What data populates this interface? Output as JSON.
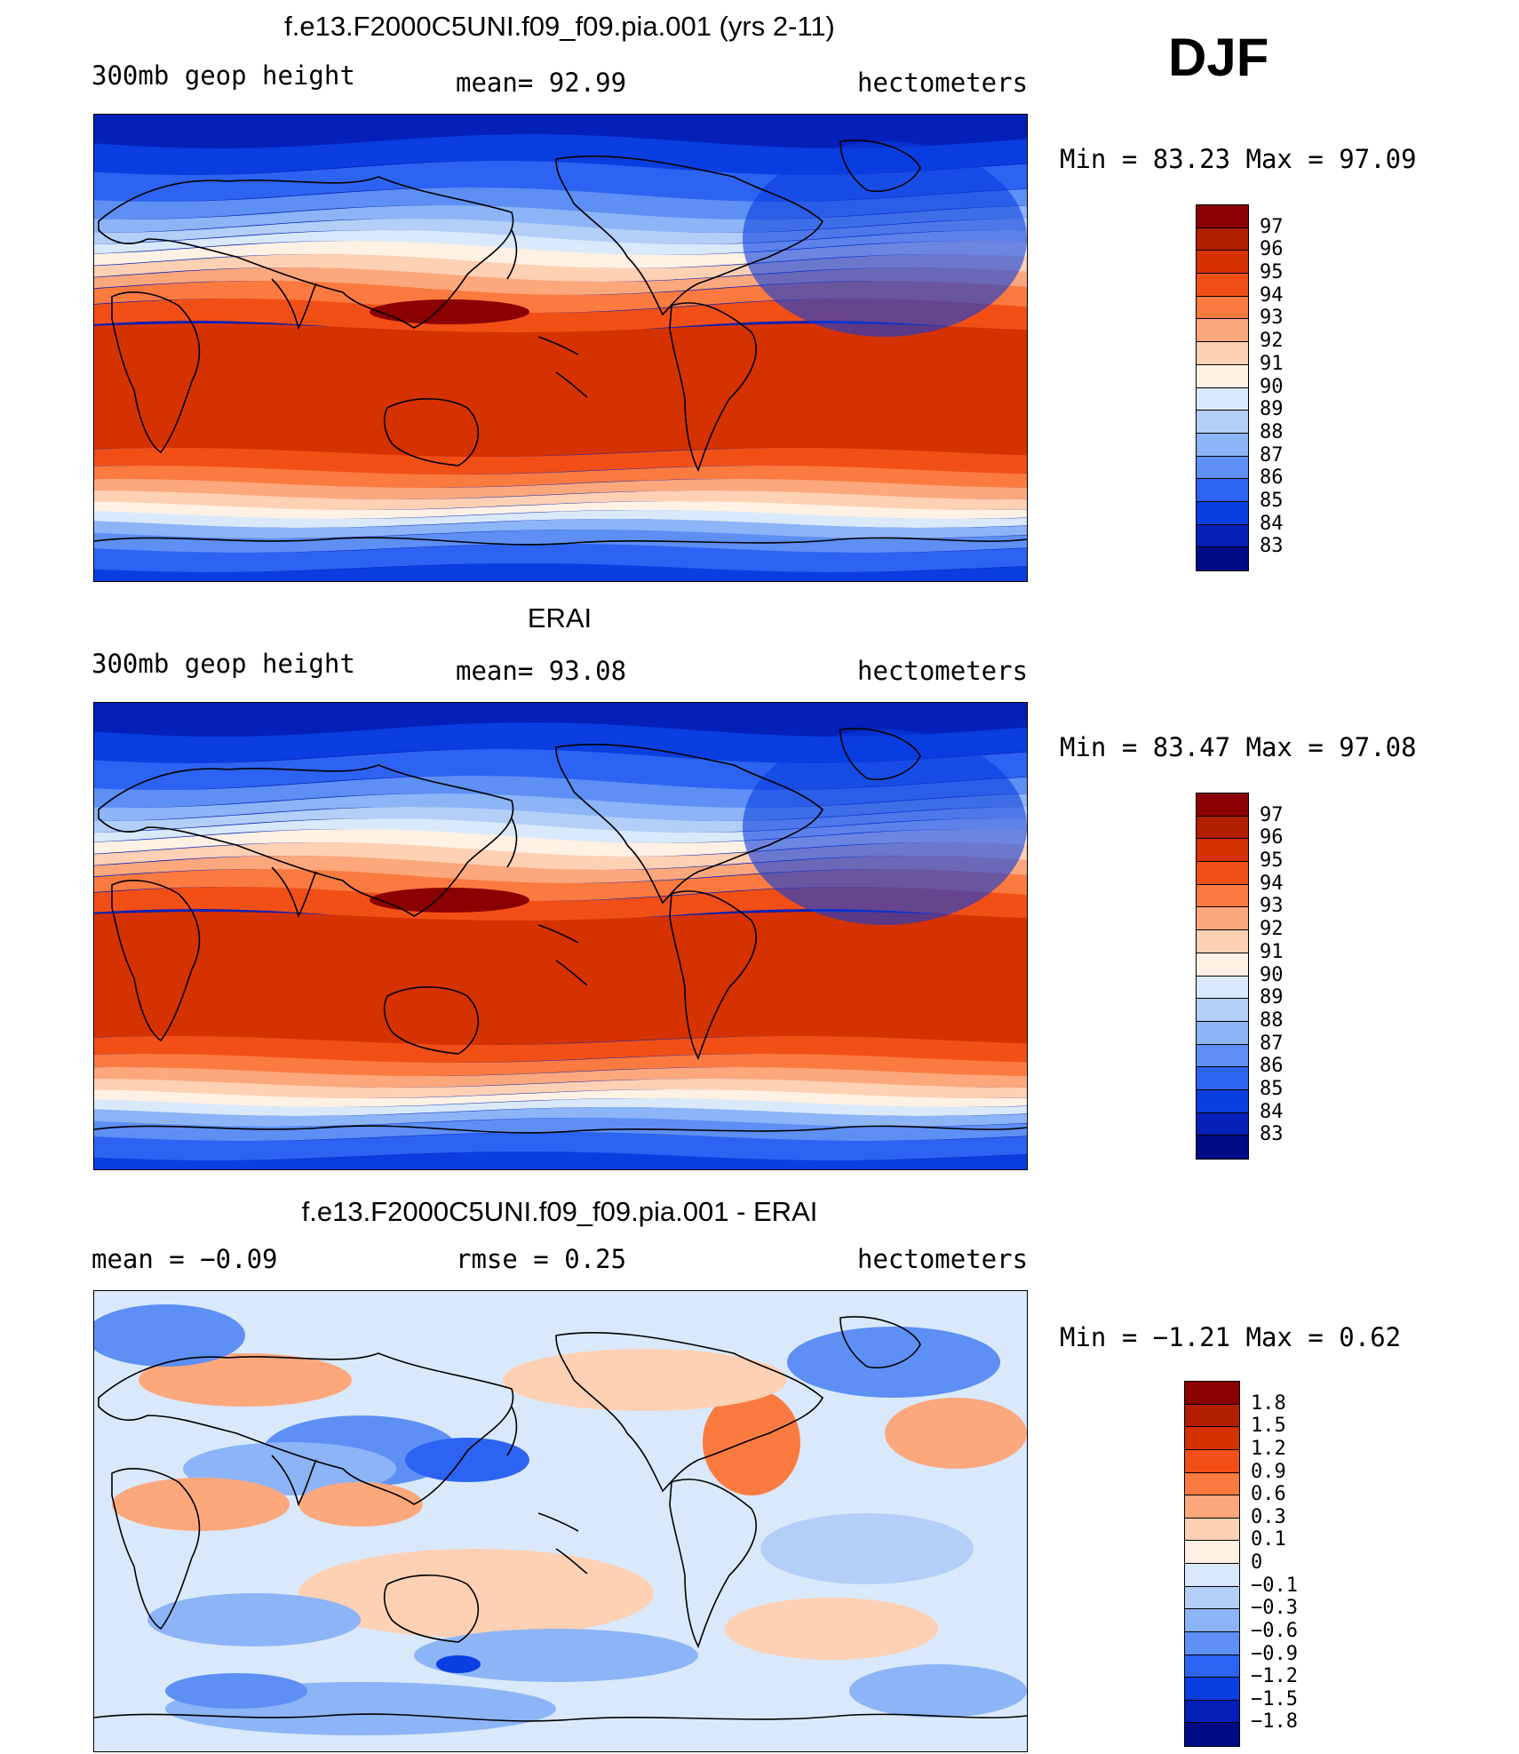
{
  "season": "DJF",
  "panels": [
    {
      "title": "f.e13.F2000C5UNI.f09_f09.pia.001 (yrs 2-11)",
      "left_label": "300mb  geop  height",
      "center_label": "mean=   92.99",
      "units": "hectometers",
      "stats": "Min  =    83.23  Max  =    97.09",
      "colorbar": {
        "labels": [
          "97",
          "96",
          "95",
          "94",
          "93",
          "92",
          "91",
          "90",
          "89",
          "88",
          "87",
          "86",
          "85",
          "84",
          "83"
        ],
        "colors": [
          "#8b0000",
          "#b11e00",
          "#d63200",
          "#f24f16",
          "#fb7a3f",
          "#fda77d",
          "#fed0b4",
          "#fff1e3",
          "#d9e9fb",
          "#b3cff8",
          "#8db4f6",
          "#5d8ff5",
          "#2d63f2",
          "#0a3ee0",
          "#0420b8",
          "#000a85"
        ]
      },
      "contour_field": {
        "min": 83.23,
        "max": 97.09,
        "mean": 92.99
      }
    },
    {
      "title": "ERAI",
      "left_label": "300mb  geop  height",
      "center_label": "mean=   93.08",
      "units": "hectometers",
      "stats": "Min  =    83.47  Max  =    97.08",
      "colorbar": {
        "labels": [
          "97",
          "96",
          "95",
          "94",
          "93",
          "92",
          "91",
          "90",
          "89",
          "88",
          "87",
          "86",
          "85",
          "84",
          "83"
        ],
        "colors": [
          "#8b0000",
          "#b11e00",
          "#d63200",
          "#f24f16",
          "#fb7a3f",
          "#fda77d",
          "#fed0b4",
          "#fff1e3",
          "#d9e9fb",
          "#b3cff8",
          "#8db4f6",
          "#5d8ff5",
          "#2d63f2",
          "#0a3ee0",
          "#0420b8",
          "#000a85"
        ]
      },
      "contour_field": {
        "min": 83.47,
        "max": 97.08,
        "mean": 93.08
      }
    },
    {
      "title": "f.e13.F2000C5UNI.f09_f09.pia.001 - ERAI",
      "left_label": "mean  =    −0.09",
      "center_label": "rmse  =     0.25",
      "units": "hectometers",
      "stats": "Min  =    −1.21  Max  =      0.62",
      "colorbar": {
        "labels": [
          "1.8",
          "1.5",
          "1.2",
          "0.9",
          "0.6",
          "0.3",
          "0.1",
          "0",
          "−0.1",
          "−0.3",
          "−0.6",
          "−0.9",
          "−1.2",
          "−1.5",
          "−1.8"
        ],
        "colors": [
          "#8b0000",
          "#b11e00",
          "#d63200",
          "#f24f16",
          "#fb7a3f",
          "#fda77d",
          "#fed0b4",
          "#fff1e3",
          "#d9e9fb",
          "#b3cff8",
          "#8db4f6",
          "#5d8ff5",
          "#2d63f2",
          "#0a3ee0",
          "#0420b8",
          "#000a85"
        ]
      },
      "contour_field": {
        "min": -1.21,
        "max": 0.62,
        "mean": -0.09,
        "rmse": 0.25
      }
    }
  ]
}
